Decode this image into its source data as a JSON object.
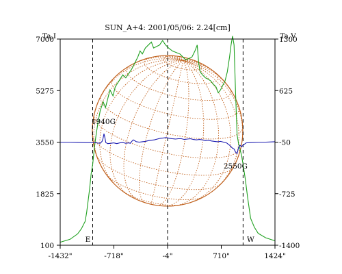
{
  "chart_data": {
    "type": "line",
    "title": "SUN_A+4: 2001/05/06: 2.24[cm]",
    "left_axis_label": "Ta,I",
    "right_axis_label": "Ta,V",
    "x_ticks": [
      "-1432\"",
      "-718\"",
      "-4\"",
      "710\"",
      "1424\""
    ],
    "x_tick_values": [
      -1432,
      -718,
      -4,
      710,
      1424
    ],
    "xlim": [
      -1432,
      1424
    ],
    "left_ticks": [
      100,
      1825,
      3550,
      5275,
      7000
    ],
    "left_ylim": [
      100,
      7000
    ],
    "right_ticks": [
      -1400,
      -725,
      -50,
      625,
      1300
    ],
    "right_ylim": [
      -1400,
      1300
    ],
    "vertical_markers": [
      -1000,
      -4,
      1000
    ],
    "limb_labels": [
      {
        "text": "E",
        "x": -1000
      },
      {
        "text": "W",
        "x": 1000
      }
    ],
    "solar_disk": {
      "center_x": -4,
      "radius_arcsec": 1000,
      "color": "#c0601c"
    },
    "annotations": [
      {
        "text": "1940G",
        "x": -855,
        "y_right": 60
      },
      {
        "text": "2550G",
        "x": 900,
        "y_right": -170
      }
    ],
    "series": [
      {
        "name": "",
        "axis": "left",
        "color": "#1ea01e",
        "x": [
          -1432,
          -1300,
          -1200,
          -1150,
          -1100,
          -1080,
          -1060,
          -1040,
          -1020,
          -1000,
          -980,
          -960,
          -930,
          -900,
          -860,
          -830,
          -800,
          -770,
          -730,
          -700,
          -650,
          -600,
          -560,
          -520,
          -480,
          -440,
          -400,
          -370,
          -340,
          -300,
          -260,
          -220,
          -190,
          -150,
          -110,
          -70,
          -30,
          10,
          60,
          110,
          160,
          200,
          240,
          280,
          320,
          360,
          390,
          410,
          430,
          460,
          500,
          540,
          570,
          600,
          640,
          670,
          700,
          730,
          760,
          790,
          820,
          840,
          860,
          880,
          900,
          920,
          940,
          960,
          980,
          1000,
          1030,
          1060,
          1100,
          1150,
          1200,
          1300,
          1424
        ],
        "y": [
          200,
          300,
          480,
          650,
          900,
          1200,
          1600,
          2000,
          2500,
          2800,
          3300,
          3700,
          4200,
          4600,
          4900,
          4700,
          5000,
          5300,
          5100,
          5400,
          5600,
          5800,
          5700,
          5850,
          6000,
          6200,
          6400,
          6600,
          6500,
          6700,
          6800,
          6900,
          6700,
          6750,
          6800,
          6950,
          6800,
          6700,
          6600,
          6550,
          6500,
          6400,
          6300,
          6350,
          6400,
          6600,
          6800,
          6200,
          5900,
          5800,
          5700,
          5650,
          5600,
          5500,
          5400,
          5200,
          5300,
          5450,
          5600,
          5900,
          6400,
          6800,
          7100,
          6800,
          5200,
          3800,
          3500,
          3300,
          3100,
          2800,
          2300,
          1700,
          1000,
          700,
          500,
          350,
          250
        ]
      },
      {
        "name": "",
        "axis": "right",
        "color": "#1a1ab0",
        "x": [
          -1432,
          -1300,
          -1200,
          -1100,
          -1000,
          -950,
          -900,
          -875,
          -862,
          -850,
          -838,
          -825,
          -800,
          -760,
          -720,
          -680,
          -640,
          -600,
          -560,
          -520,
          -500,
          -480,
          -460,
          -420,
          -380,
          -340,
          -300,
          -260,
          -220,
          -180,
          -140,
          -100,
          -60,
          -20,
          20,
          60,
          100,
          140,
          180,
          220,
          260,
          300,
          340,
          380,
          420,
          460,
          500,
          540,
          580,
          620,
          660,
          700,
          740,
          780,
          800,
          820,
          840,
          860,
          880,
          900,
          920,
          940,
          960,
          980,
          1000,
          1040,
          1100,
          1200,
          1300,
          1424
        ],
        "y": [
          -50,
          -50,
          -52,
          -55,
          -55,
          -60,
          -65,
          -40,
          0,
          60,
          10,
          -55,
          -70,
          -65,
          -60,
          -70,
          -60,
          -55,
          -65,
          -60,
          -65,
          -40,
          -20,
          -45,
          -50,
          -45,
          -40,
          -30,
          -25,
          -20,
          -10,
          0,
          5,
          10,
          0,
          -5,
          -10,
          -5,
          -5,
          -15,
          -10,
          -5,
          -15,
          -20,
          -15,
          -20,
          -30,
          -25,
          -35,
          -40,
          -45,
          -40,
          -50,
          -60,
          -75,
          -90,
          -110,
          -130,
          -140,
          -180,
          -200,
          -120,
          -90,
          -110,
          -90,
          -60,
          -55,
          -50,
          -50,
          -45
        ]
      }
    ]
  }
}
